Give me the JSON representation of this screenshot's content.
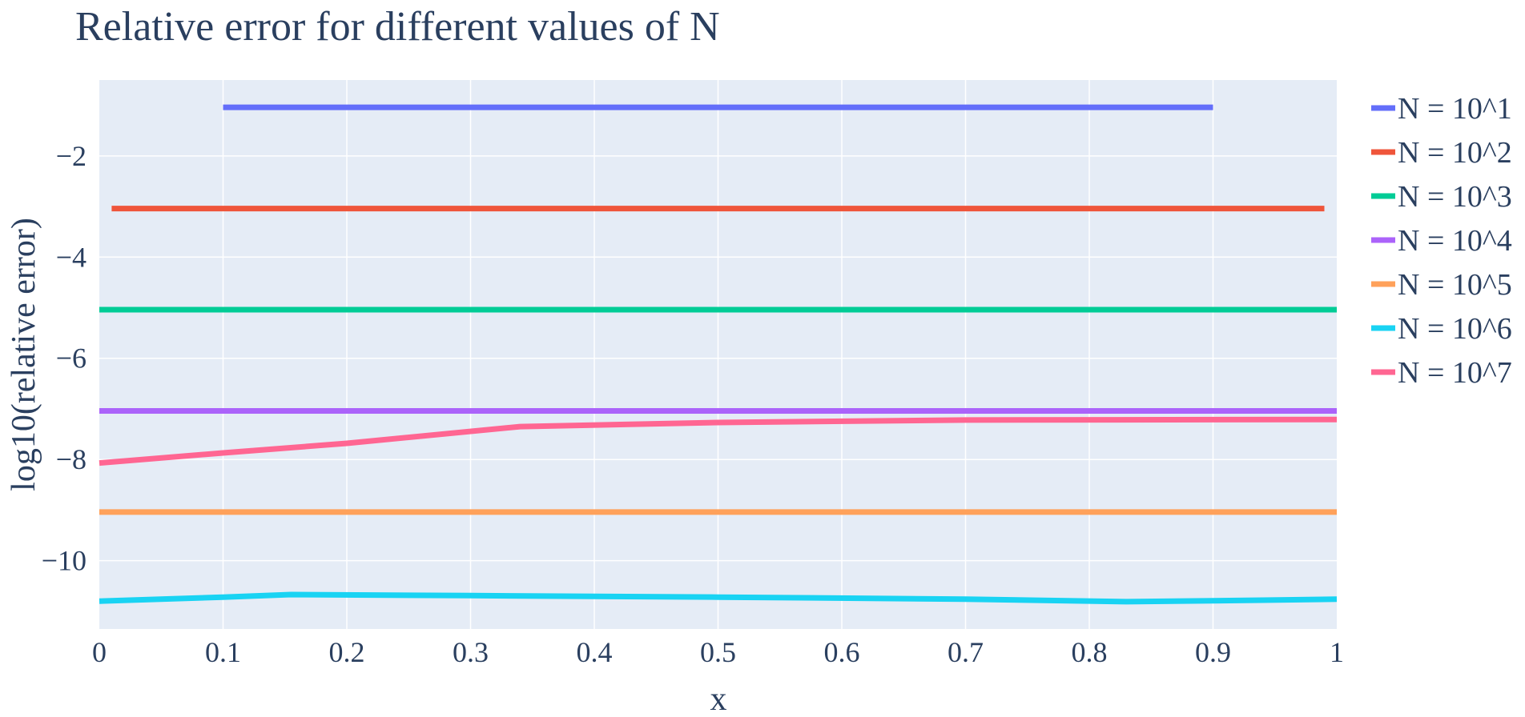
{
  "chart_data": {
    "type": "line",
    "title": "Relative error for different values of N",
    "xlabel": "x",
    "ylabel": "log10(relative error)",
    "xlim": [
      0,
      1
    ],
    "ylim": [
      -11.35,
      -0.5
    ],
    "x_ticks": [
      0,
      0.1,
      0.2,
      0.3,
      0.4,
      0.5,
      0.6,
      0.7,
      0.8,
      0.9,
      1
    ],
    "x_tick_labels": [
      "0",
      "0.1",
      "0.2",
      "0.3",
      "0.4",
      "0.5",
      "0.6",
      "0.7",
      "0.8",
      "0.9",
      "1"
    ],
    "y_ticks": [
      -2,
      -4,
      -6,
      -8,
      -10
    ],
    "y_tick_labels": [
      "−2",
      "−4",
      "−6",
      "−8",
      "−10"
    ],
    "grid": true,
    "legend_position": "right",
    "plot_background": "#e5ecf6",
    "series": [
      {
        "name": "N = 10^1",
        "color": "#636efa",
        "x": [
          0.1,
          0.2,
          0.3,
          0.4,
          0.5,
          0.6,
          0.7,
          0.8,
          0.9
        ],
        "y": [
          -1.04,
          -1.04,
          -1.04,
          -1.04,
          -1.04,
          -1.04,
          -1.04,
          -1.04,
          -1.04
        ]
      },
      {
        "name": "N = 10^2",
        "color": "#ef553b",
        "x": [
          0.01,
          0.1,
          0.2,
          0.3,
          0.4,
          0.5,
          0.6,
          0.7,
          0.8,
          0.9,
          0.99
        ],
        "y": [
          -3.04,
          -3.04,
          -3.04,
          -3.04,
          -3.04,
          -3.04,
          -3.04,
          -3.04,
          -3.04,
          -3.04,
          -3.04
        ]
      },
      {
        "name": "N = 10^3",
        "color": "#00cc96",
        "x": [
          0,
          0.2,
          0.4,
          0.6,
          0.8,
          1
        ],
        "y": [
          -5.04,
          -5.04,
          -5.04,
          -5.04,
          -5.04,
          -5.04
        ]
      },
      {
        "name": "N = 10^4",
        "color": "#ab63fa",
        "x": [
          0,
          0.2,
          0.4,
          0.6,
          0.8,
          1
        ],
        "y": [
          -7.04,
          -7.04,
          -7.04,
          -7.04,
          -7.04,
          -7.04
        ]
      },
      {
        "name": "N = 10^5",
        "color": "#ffa15a",
        "x": [
          0,
          0.2,
          0.4,
          0.6,
          0.8,
          1
        ],
        "y": [
          -9.04,
          -9.04,
          -9.04,
          -9.04,
          -9.04,
          -9.04
        ]
      },
      {
        "name": "N = 10^6",
        "color": "#19d3f3",
        "x": [
          0,
          0.1,
          0.155,
          0.3,
          0.5,
          0.7,
          0.83,
          0.94,
          1
        ],
        "y": [
          -10.8,
          -10.72,
          -10.67,
          -10.69,
          -10.72,
          -10.76,
          -10.81,
          -10.78,
          -10.76
        ]
      },
      {
        "name": "N = 10^7",
        "color": "#ff6692",
        "x": [
          0,
          0.1,
          0.2,
          0.34,
          0.5,
          0.7,
          1
        ],
        "y": [
          -8.07,
          -7.87,
          -7.68,
          -7.35,
          -7.27,
          -7.22,
          -7.21
        ]
      }
    ]
  }
}
